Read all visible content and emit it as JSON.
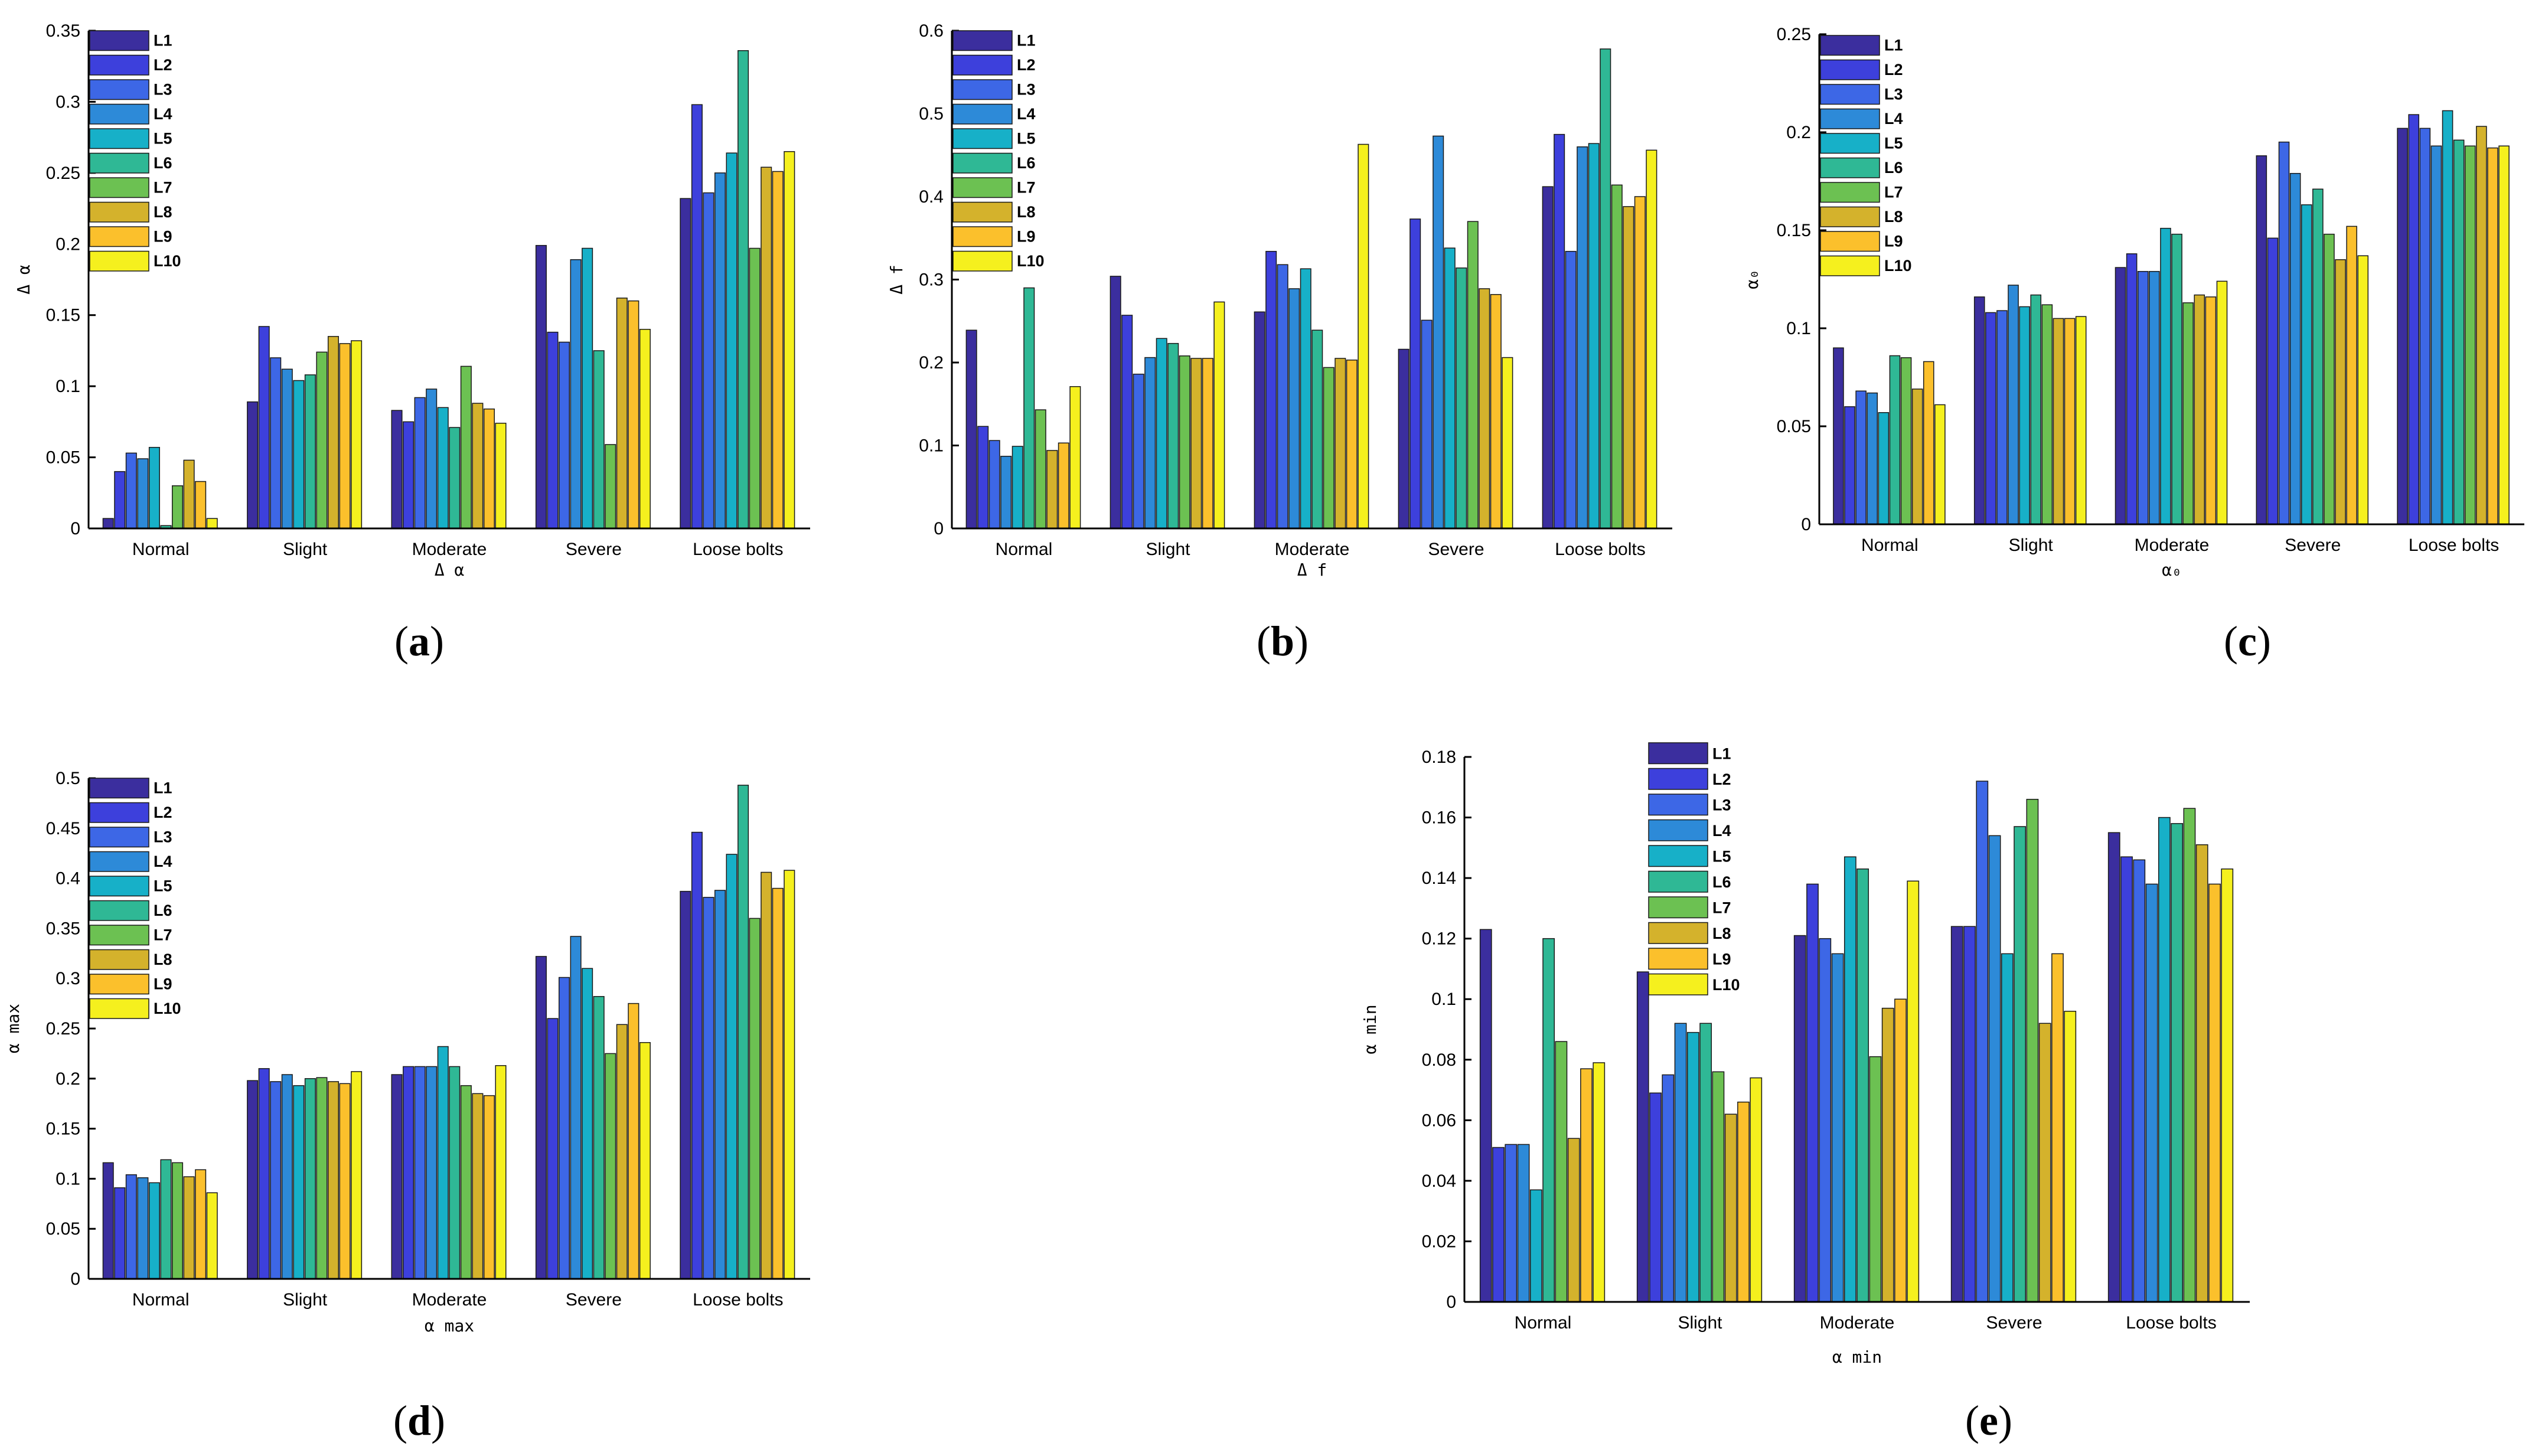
{
  "colors": [
    "#3b2e9e",
    "#3d40dc",
    "#3d67e6",
    "#2d8ad8",
    "#17b0c8",
    "#2fb895",
    "#6cc152",
    "#d4b22c",
    "#fbc02c",
    "#f5f01e"
  ],
  "legend": [
    "L1",
    "L2",
    "L3",
    "L4",
    "L5",
    "L6",
    "L7",
    "L8",
    "L9",
    "L10"
  ],
  "chart_data": [
    {
      "type": "bar",
      "panel": "(a)",
      "title": "",
      "xlabel": "Δ α",
      "ylabel": "Δ α",
      "categories": [
        "Normal",
        "Slight",
        "Moderate",
        "Severe",
        "Loose bolts"
      ],
      "ylim": [
        0,
        0.35
      ],
      "yticks": [
        0,
        0.05,
        0.1,
        0.15,
        0.2,
        0.25,
        0.3,
        0.35
      ],
      "ytick_labels": [
        "0",
        "0.05",
        "0.1",
        "0.15",
        "0.2",
        "0.25",
        "0.3",
        "0.35"
      ],
      "legend_position": "top-left",
      "series": [
        {
          "name": "L1",
          "values": [
            0.007,
            0.089,
            0.083,
            0.199,
            0.232
          ]
        },
        {
          "name": "L2",
          "values": [
            0.04,
            0.142,
            0.075,
            0.138,
            0.298
          ]
        },
        {
          "name": "L3",
          "values": [
            0.053,
            0.12,
            0.092,
            0.131,
            0.236
          ]
        },
        {
          "name": "L4",
          "values": [
            0.049,
            0.112,
            0.098,
            0.189,
            0.25
          ]
        },
        {
          "name": "L5",
          "values": [
            0.057,
            0.104,
            0.085,
            0.197,
            0.264
          ]
        },
        {
          "name": "L6",
          "values": [
            0.002,
            0.108,
            0.071,
            0.125,
            0.336
          ]
        },
        {
          "name": "L7",
          "values": [
            0.03,
            0.124,
            0.114,
            0.059,
            0.197
          ]
        },
        {
          "name": "L8",
          "values": [
            0.048,
            0.135,
            0.088,
            0.162,
            0.254
          ]
        },
        {
          "name": "L9",
          "values": [
            0.033,
            0.13,
            0.084,
            0.16,
            0.251
          ]
        },
        {
          "name": "L10",
          "values": [
            0.007,
            0.132,
            0.074,
            0.14,
            0.265
          ]
        }
      ]
    },
    {
      "type": "bar",
      "panel": "(b)",
      "title": "",
      "xlabel": "Δ f",
      "ylabel": "Δ f",
      "categories": [
        "Normal",
        "Slight",
        "Moderate",
        "Severe",
        "Loose bolts"
      ],
      "ylim": [
        0,
        0.6
      ],
      "yticks": [
        0,
        0.1,
        0.2,
        0.3,
        0.4,
        0.5,
        0.6
      ],
      "ytick_labels": [
        "0",
        "0.1",
        "0.2",
        "0.3",
        "0.4",
        "0.5",
        "0.6"
      ],
      "legend_position": "top-left",
      "series": [
        {
          "name": "L1",
          "values": [
            0.239,
            0.304,
            0.261,
            0.216,
            0.412
          ]
        },
        {
          "name": "L2",
          "values": [
            0.123,
            0.257,
            0.334,
            0.373,
            0.475
          ]
        },
        {
          "name": "L3",
          "values": [
            0.106,
            0.186,
            0.318,
            0.251,
            0.334
          ]
        },
        {
          "name": "L4",
          "values": [
            0.087,
            0.206,
            0.289,
            0.473,
            0.46
          ]
        },
        {
          "name": "L5",
          "values": [
            0.099,
            0.229,
            0.313,
            0.338,
            0.464
          ]
        },
        {
          "name": "L6",
          "values": [
            0.29,
            0.223,
            0.239,
            0.314,
            0.578
          ]
        },
        {
          "name": "L7",
          "values": [
            0.143,
            0.208,
            0.194,
            0.37,
            0.414
          ]
        },
        {
          "name": "L8",
          "values": [
            0.094,
            0.205,
            0.205,
            0.289,
            0.388
          ]
        },
        {
          "name": "L9",
          "values": [
            0.103,
            0.205,
            0.203,
            0.282,
            0.4
          ]
        },
        {
          "name": "L10",
          "values": [
            0.171,
            0.273,
            0.463,
            0.206,
            0.456
          ]
        }
      ]
    },
    {
      "type": "bar",
      "panel": "(c)",
      "title": "",
      "xlabel": "α₀",
      "ylabel": "α₀",
      "categories": [
        "Normal",
        "Slight",
        "Moderate",
        "Severe",
        "Loose bolts"
      ],
      "ylim": [
        0,
        0.25
      ],
      "yticks": [
        0,
        0.05,
        0.1,
        0.15,
        0.2,
        0.25
      ],
      "ytick_labels": [
        "0",
        "0.05",
        "0.1",
        "0.15",
        "0.2",
        "0.25"
      ],
      "legend_position": "top-left",
      "series": [
        {
          "name": "L1",
          "values": [
            0.09,
            0.116,
            0.131,
            0.188,
            0.202
          ]
        },
        {
          "name": "L2",
          "values": [
            0.06,
            0.108,
            0.138,
            0.146,
            0.209
          ]
        },
        {
          "name": "L3",
          "values": [
            0.068,
            0.109,
            0.129,
            0.195,
            0.202
          ]
        },
        {
          "name": "L4",
          "values": [
            0.067,
            0.122,
            0.129,
            0.179,
            0.193
          ]
        },
        {
          "name": "L5",
          "values": [
            0.057,
            0.111,
            0.151,
            0.163,
            0.211
          ]
        },
        {
          "name": "L6",
          "values": [
            0.086,
            0.117,
            0.148,
            0.171,
            0.196
          ]
        },
        {
          "name": "L7",
          "values": [
            0.085,
            0.112,
            0.113,
            0.148,
            0.193
          ]
        },
        {
          "name": "L8",
          "values": [
            0.069,
            0.105,
            0.117,
            0.135,
            0.203
          ]
        },
        {
          "name": "L9",
          "values": [
            0.083,
            0.105,
            0.116,
            0.152,
            0.192
          ]
        },
        {
          "name": "L10",
          "values": [
            0.061,
            0.106,
            0.124,
            0.137,
            0.193
          ]
        }
      ]
    },
    {
      "type": "bar",
      "panel": "(d)",
      "title": "",
      "xlabel": "α max",
      "ylabel": "α max",
      "categories": [
        "Normal",
        "Slight",
        "Moderate",
        "Severe",
        "Loose bolts"
      ],
      "ylim": [
        0,
        0.5
      ],
      "yticks": [
        0,
        0.05,
        0.1,
        0.15,
        0.2,
        0.25,
        0.3,
        0.35,
        0.4,
        0.45,
        0.5
      ],
      "ytick_labels": [
        "0",
        "0.05",
        "0.1",
        "0.15",
        "0.2",
        "0.25",
        "0.3",
        "0.35",
        "0.4",
        "0.45",
        "0.5"
      ],
      "legend_position": "top-left",
      "series": [
        {
          "name": "L1",
          "values": [
            0.116,
            0.198,
            0.204,
            0.322,
            0.387
          ]
        },
        {
          "name": "L2",
          "values": [
            0.091,
            0.21,
            0.212,
            0.26,
            0.446
          ]
        },
        {
          "name": "L3",
          "values": [
            0.104,
            0.197,
            0.212,
            0.301,
            0.381
          ]
        },
        {
          "name": "L4",
          "values": [
            0.101,
            0.204,
            0.212,
            0.342,
            0.388
          ]
        },
        {
          "name": "L5",
          "values": [
            0.096,
            0.193,
            0.232,
            0.31,
            0.424
          ]
        },
        {
          "name": "L6",
          "values": [
            0.119,
            0.2,
            0.212,
            0.282,
            0.493
          ]
        },
        {
          "name": "L7",
          "values": [
            0.116,
            0.201,
            0.193,
            0.225,
            0.36
          ]
        },
        {
          "name": "L8",
          "values": [
            0.102,
            0.197,
            0.185,
            0.254,
            0.406
          ]
        },
        {
          "name": "L9",
          "values": [
            0.109,
            0.195,
            0.183,
            0.275,
            0.39
          ]
        },
        {
          "name": "L10",
          "values": [
            0.086,
            0.207,
            0.213,
            0.236,
            0.408
          ]
        }
      ]
    },
    {
      "type": "bar",
      "panel": "(e)",
      "title": "",
      "xlabel": "α min",
      "ylabel": "α min",
      "categories": [
        "Normal",
        "Slight",
        "Moderate",
        "Severe",
        "Loose bolts"
      ],
      "ylim": [
        0,
        0.18
      ],
      "yticks": [
        0,
        0.02,
        0.04,
        0.06,
        0.08,
        0.1,
        0.12,
        0.14,
        0.16,
        0.18
      ],
      "ytick_labels": [
        "0",
        "0.02",
        "0.04",
        "0.06",
        "0.08",
        "0.1",
        "0.12",
        "0.14",
        "0.16",
        "0.18"
      ],
      "legend_position": "top-left",
      "series": [
        {
          "name": "L1",
          "values": [
            0.123,
            0.109,
            0.121,
            0.124,
            0.155
          ]
        },
        {
          "name": "L2",
          "values": [
            0.051,
            0.069,
            0.138,
            0.124,
            0.147
          ]
        },
        {
          "name": "L3",
          "values": [
            0.052,
            0.075,
            0.12,
            0.172,
            0.146
          ]
        },
        {
          "name": "L4",
          "values": [
            0.052,
            0.092,
            0.115,
            0.154,
            0.138
          ]
        },
        {
          "name": "L5",
          "values": [
            0.037,
            0.089,
            0.147,
            0.115,
            0.16
          ]
        },
        {
          "name": "L6",
          "values": [
            0.12,
            0.092,
            0.143,
            0.157,
            0.158
          ]
        },
        {
          "name": "L7",
          "values": [
            0.086,
            0.076,
            0.081,
            0.166,
            0.163
          ]
        },
        {
          "name": "L8",
          "values": [
            0.054,
            0.062,
            0.097,
            0.092,
            0.151
          ]
        },
        {
          "name": "L9",
          "values": [
            0.077,
            0.066,
            0.1,
            0.115,
            0.138
          ]
        },
        {
          "name": "L10",
          "values": [
            0.079,
            0.074,
            0.139,
            0.096,
            0.143
          ]
        }
      ]
    }
  ]
}
